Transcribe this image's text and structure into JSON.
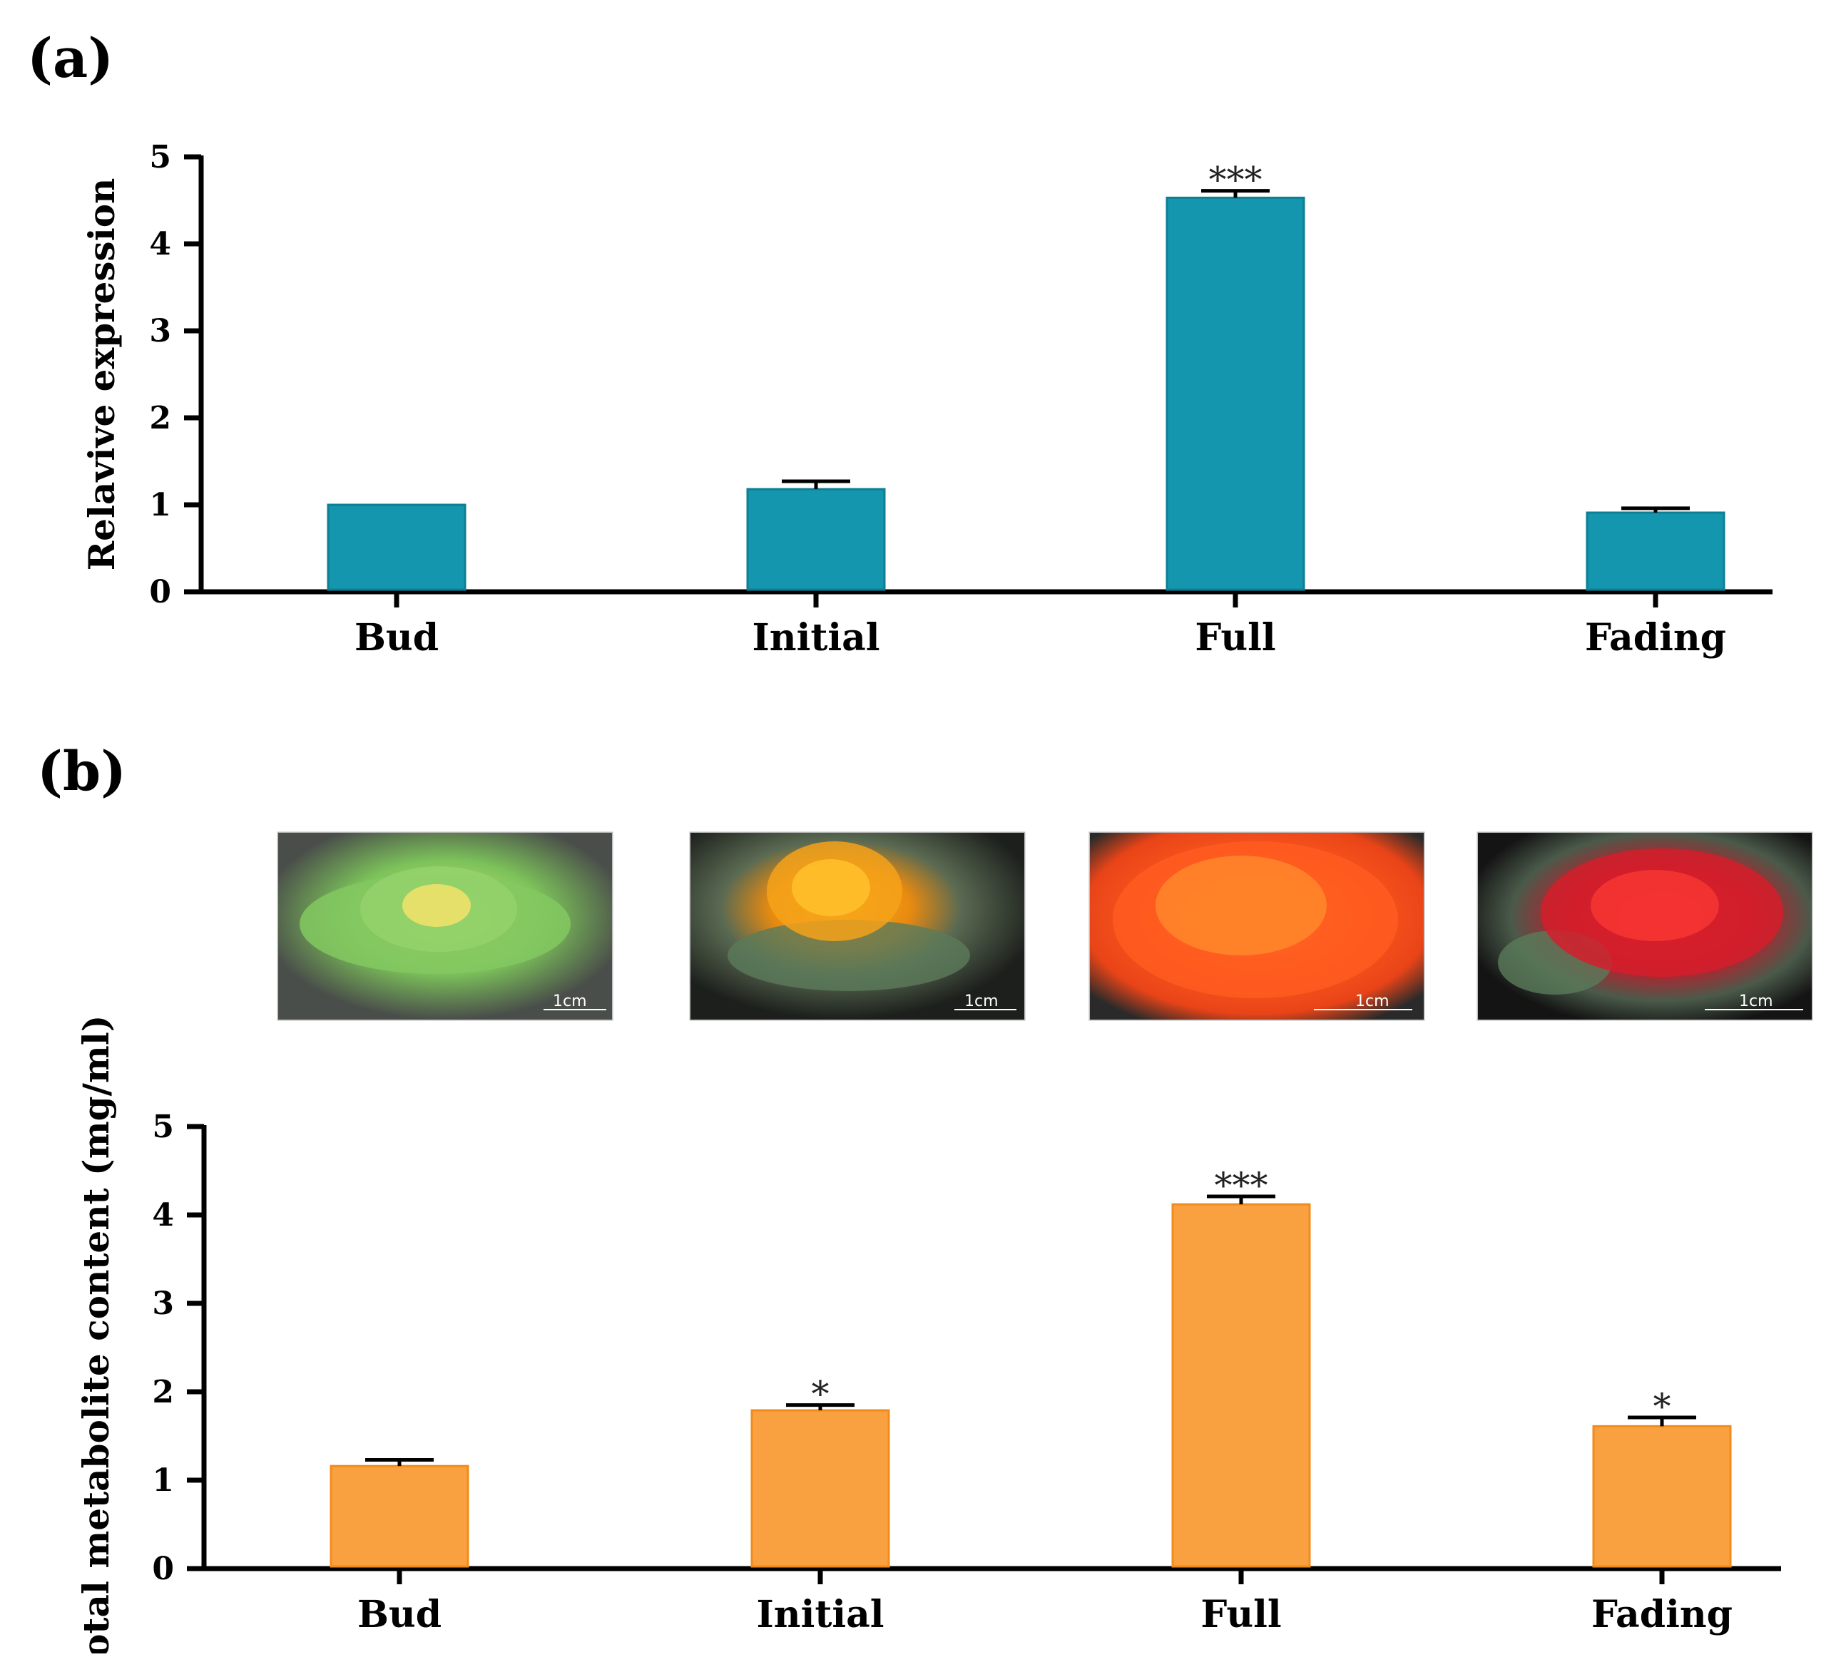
{
  "panel_a_label": "(a)",
  "panel_b_label": "(b)",
  "scale_bar_label": "1cm",
  "photo_stages": [
    "Bud",
    "Initial",
    "Full",
    "Fading"
  ],
  "chart_data": [
    {
      "type": "bar",
      "id": "a",
      "categories": [
        "Bud",
        "Initial",
        "Full",
        "Fading"
      ],
      "values": [
        1.0,
        1.18,
        4.53,
        0.91
      ],
      "errors": [
        0.0,
        0.09,
        0.08,
        0.05
      ],
      "significance": [
        "",
        "",
        "***",
        ""
      ],
      "ylabel": "Relavive expression",
      "xlabel": "",
      "ylim": [
        0,
        5
      ],
      "yticks": [
        "0",
        "1",
        "2",
        "3",
        "4",
        "5"
      ],
      "bar_color": "#1496ae",
      "bar_edge": "#0d7f94"
    },
    {
      "type": "bar",
      "id": "b",
      "categories": [
        "Bud",
        "Initial",
        "Full",
        "Fading"
      ],
      "values": [
        1.16,
        1.79,
        4.12,
        1.61
      ],
      "errors": [
        0.07,
        0.06,
        0.09,
        0.1
      ],
      "significance": [
        "",
        "*",
        "***",
        "*"
      ],
      "ylabel": "Total metabolite content (mg/ml)",
      "xlabel": "",
      "ylim": [
        0,
        5
      ],
      "yticks": [
        "0",
        "1",
        "2",
        "3",
        "4",
        "5"
      ],
      "bar_color": "#f9a040",
      "bar_edge": "#f28b1c"
    }
  ]
}
